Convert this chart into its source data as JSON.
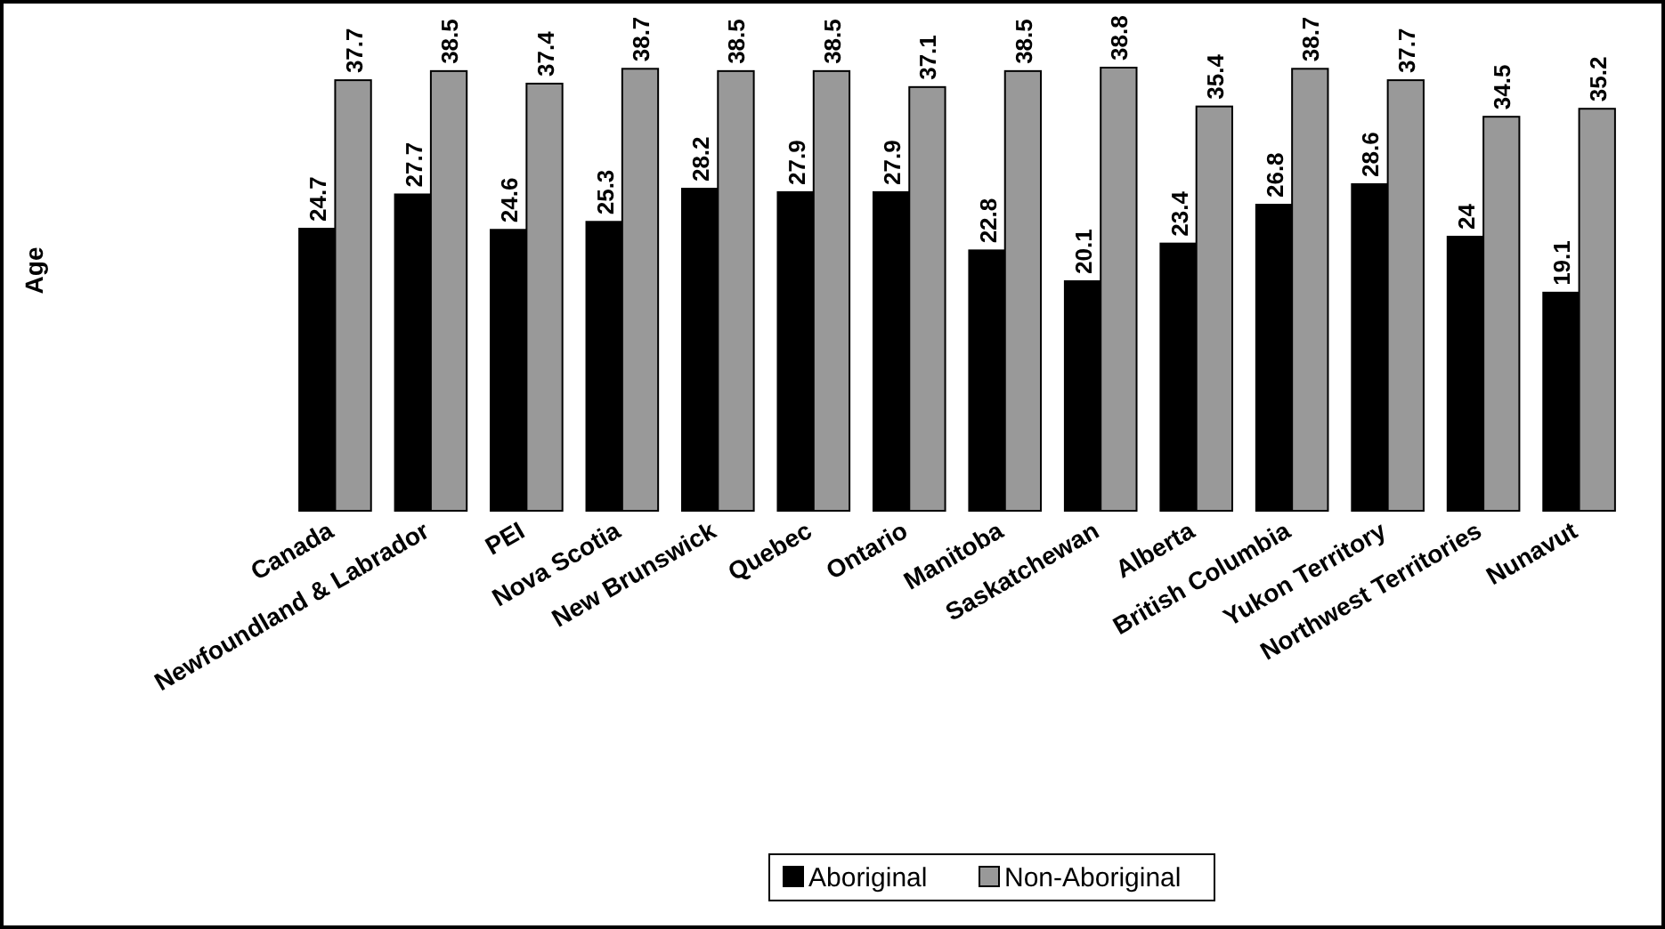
{
  "chart_data": {
    "type": "bar",
    "ylabel": "Age",
    "categories": [
      "Canada",
      "Newfoundland & Labrador",
      "PEI",
      "Nova Scotia",
      "New Brunswick",
      "Quebec",
      "Ontario",
      "Manitoba",
      "Saskatchewan",
      "Alberta",
      "British Columbia",
      "Yukon Territory",
      "Northwest Territories",
      "Nunavut"
    ],
    "series": [
      {
        "name": "Aboriginal",
        "color": "#000000",
        "values": [
          24.7,
          27.7,
          24.6,
          25.3,
          28.2,
          27.9,
          27.9,
          22.8,
          20.1,
          23.4,
          26.8,
          28.6,
          24,
          19.1
        ]
      },
      {
        "name": "Non-Aboriginal",
        "color": "#999999",
        "values": [
          37.7,
          38.5,
          37.4,
          38.7,
          38.5,
          38.5,
          37.1,
          38.5,
          38.8,
          35.4,
          38.7,
          37.7,
          34.5,
          35.2
        ]
      }
    ],
    "data_labels": true,
    "legend": "bottom"
  }
}
